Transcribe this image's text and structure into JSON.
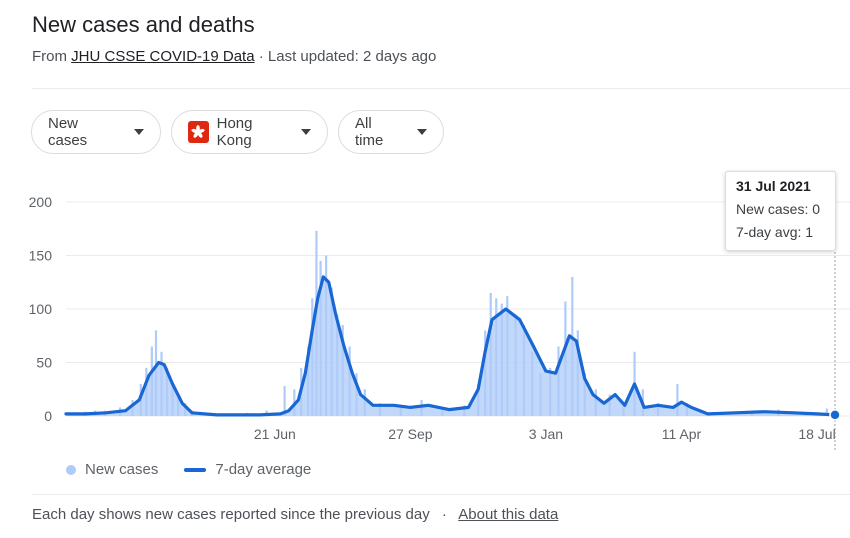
{
  "header": {
    "title": "New cases and deaths",
    "source_prefix": "From",
    "source_name": "JHU CSSE COVID-19 Data",
    "updated": "· Last updated: 2 days ago"
  },
  "filters": {
    "metric": "New cases",
    "location": "Hong Kong",
    "range": "All time"
  },
  "tooltip": {
    "date": "31 Jul 2021",
    "new_cases": "New cases: 0",
    "avg": "7-day avg: 1"
  },
  "legend": {
    "bars": "New cases",
    "line": "7-day average"
  },
  "footer": {
    "note": "Each day shows new cases reported since the previous day",
    "sep": "·",
    "about": "About this data"
  },
  "colors": {
    "bars": "#aecbfa",
    "line": "#1967d2",
    "grid": "#ebebeb",
    "axis_text": "#5f6368",
    "flag": "#de2910"
  },
  "chart_data": {
    "type": "bar",
    "title": "",
    "xlabel": "",
    "ylabel": "",
    "ylim": [
      0,
      200
    ],
    "yticks": [
      0,
      50,
      100,
      150,
      200
    ],
    "x_range": [
      "2020-01-22",
      "2021-07-31"
    ],
    "xticks": [
      {
        "date": "2020-06-21",
        "label": "21 Jun"
      },
      {
        "date": "2020-09-27",
        "label": "27 Sep"
      },
      {
        "date": "2021-01-03",
        "label": "3 Jan"
      },
      {
        "date": "2021-04-11",
        "label": "11 Apr"
      },
      {
        "date": "2021-07-18",
        "label": "18 Jul"
      }
    ],
    "grid": true,
    "legend_position": "bottom-left",
    "series": [
      {
        "name": "7-day average",
        "kind": "line",
        "points": [
          [
            "2020-01-22",
            2
          ],
          [
            "2020-02-05",
            2
          ],
          [
            "2020-02-20",
            3
          ],
          [
            "2020-03-05",
            5
          ],
          [
            "2020-03-15",
            15
          ],
          [
            "2020-03-22",
            38
          ],
          [
            "2020-03-29",
            50
          ],
          [
            "2020-04-02",
            48
          ],
          [
            "2020-04-08",
            30
          ],
          [
            "2020-04-15",
            12
          ],
          [
            "2020-04-22",
            3
          ],
          [
            "2020-05-10",
            1
          ],
          [
            "2020-06-10",
            1
          ],
          [
            "2020-06-25",
            2
          ],
          [
            "2020-07-01",
            5
          ],
          [
            "2020-07-08",
            15
          ],
          [
            "2020-07-13",
            40
          ],
          [
            "2020-07-18",
            80
          ],
          [
            "2020-07-22",
            110
          ],
          [
            "2020-07-26",
            130
          ],
          [
            "2020-07-30",
            125
          ],
          [
            "2020-08-04",
            95
          ],
          [
            "2020-08-10",
            65
          ],
          [
            "2020-08-16",
            40
          ],
          [
            "2020-08-22",
            20
          ],
          [
            "2020-08-31",
            10
          ],
          [
            "2020-09-15",
            10
          ],
          [
            "2020-09-27",
            8
          ],
          [
            "2020-10-10",
            10
          ],
          [
            "2020-10-25",
            6
          ],
          [
            "2020-11-08",
            8
          ],
          [
            "2020-11-15",
            25
          ],
          [
            "2020-11-20",
            60
          ],
          [
            "2020-11-25",
            90
          ],
          [
            "2020-12-05",
            100
          ],
          [
            "2020-12-15",
            90
          ],
          [
            "2020-12-25",
            65
          ],
          [
            "2021-01-03",
            42
          ],
          [
            "2021-01-10",
            40
          ],
          [
            "2021-01-20",
            75
          ],
          [
            "2021-01-25",
            70
          ],
          [
            "2021-01-31",
            35
          ],
          [
            "2021-02-06",
            20
          ],
          [
            "2021-02-14",
            12
          ],
          [
            "2021-02-22",
            20
          ],
          [
            "2021-03-01",
            10
          ],
          [
            "2021-03-08",
            30
          ],
          [
            "2021-03-15",
            8
          ],
          [
            "2021-03-25",
            10
          ],
          [
            "2021-04-05",
            8
          ],
          [
            "2021-04-11",
            13
          ],
          [
            "2021-04-18",
            8
          ],
          [
            "2021-04-30",
            2
          ],
          [
            "2021-05-20",
            3
          ],
          [
            "2021-06-10",
            4
          ],
          [
            "2021-07-01",
            3
          ],
          [
            "2021-07-18",
            2
          ],
          [
            "2021-07-31",
            1
          ]
        ]
      },
      {
        "name": "New cases",
        "kind": "bar",
        "points": [
          [
            "2020-01-28",
            3
          ],
          [
            "2020-02-05",
            4
          ],
          [
            "2020-02-12",
            5
          ],
          [
            "2020-02-19",
            5
          ],
          [
            "2020-03-01",
            8
          ],
          [
            "2020-03-10",
            15
          ],
          [
            "2020-03-16",
            30
          ],
          [
            "2020-03-20",
            45
          ],
          [
            "2020-03-24",
            65
          ],
          [
            "2020-03-27",
            80
          ],
          [
            "2020-03-31",
            60
          ],
          [
            "2020-04-04",
            45
          ],
          [
            "2020-04-08",
            30
          ],
          [
            "2020-04-12",
            20
          ],
          [
            "2020-04-17",
            12
          ],
          [
            "2020-04-22",
            5
          ],
          [
            "2020-05-05",
            2
          ],
          [
            "2020-06-01",
            3
          ],
          [
            "2020-06-15",
            5
          ],
          [
            "2020-06-28",
            28
          ],
          [
            "2020-07-05",
            25
          ],
          [
            "2020-07-10",
            45
          ],
          [
            "2020-07-15",
            65
          ],
          [
            "2020-07-18",
            110
          ],
          [
            "2020-07-21",
            173
          ],
          [
            "2020-07-24",
            145
          ],
          [
            "2020-07-28",
            150
          ],
          [
            "2020-08-01",
            120
          ],
          [
            "2020-08-05",
            95
          ],
          [
            "2020-08-09",
            85
          ],
          [
            "2020-08-14",
            65
          ],
          [
            "2020-08-19",
            40
          ],
          [
            "2020-08-25",
            25
          ],
          [
            "2020-09-05",
            12
          ],
          [
            "2020-09-20",
            10
          ],
          [
            "2020-10-05",
            15
          ],
          [
            "2020-10-20",
            8
          ],
          [
            "2020-11-05",
            10
          ],
          [
            "2020-11-15",
            30
          ],
          [
            "2020-11-20",
            80
          ],
          [
            "2020-11-24",
            115
          ],
          [
            "2020-11-28",
            110
          ],
          [
            "2020-12-02",
            105
          ],
          [
            "2020-12-06",
            112
          ],
          [
            "2020-12-12",
            95
          ],
          [
            "2020-12-18",
            85
          ],
          [
            "2020-12-24",
            60
          ],
          [
            "2020-12-30",
            40
          ],
          [
            "2021-01-06",
            45
          ],
          [
            "2021-01-12",
            65
          ],
          [
            "2021-01-17",
            107
          ],
          [
            "2021-01-22",
            130
          ],
          [
            "2021-01-26",
            80
          ],
          [
            "2021-01-31",
            40
          ],
          [
            "2021-02-08",
            25
          ],
          [
            "2021-02-18",
            20
          ],
          [
            "2021-02-28",
            10
          ],
          [
            "2021-03-08",
            60
          ],
          [
            "2021-03-14",
            25
          ],
          [
            "2021-03-25",
            12
          ],
          [
            "2021-04-08",
            30
          ],
          [
            "2021-04-15",
            12
          ],
          [
            "2021-05-01",
            3
          ],
          [
            "2021-06-01",
            5
          ],
          [
            "2021-06-20",
            6
          ],
          [
            "2021-07-10",
            3
          ],
          [
            "2021-07-25",
            7
          ],
          [
            "2021-07-31",
            0
          ]
        ]
      }
    ]
  }
}
